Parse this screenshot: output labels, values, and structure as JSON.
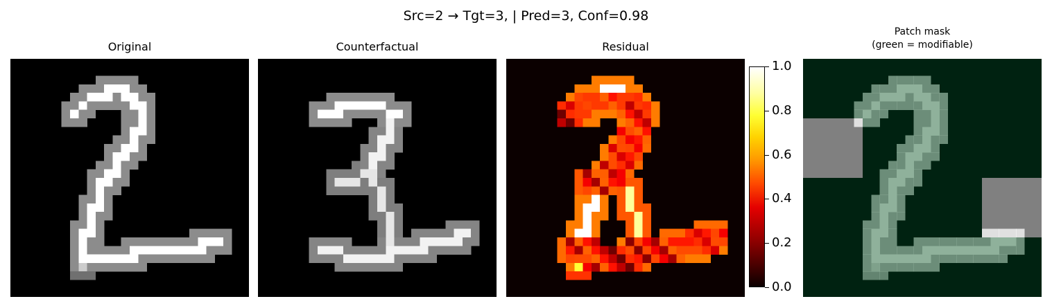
{
  "figure": {
    "suptitle": "Src=2 → Tgt=3, | Pred=3, Conf=0.98"
  },
  "panels": [
    {
      "title": "Original"
    },
    {
      "title": "Counterfactual"
    },
    {
      "title": "Residual"
    },
    {
      "title_line1": "Patch mask",
      "title_line2": "(green = modifiable)"
    }
  ],
  "chart_data": {
    "type": "heatmap",
    "grid_size": 28,
    "colormaps": {
      "original": "gray",
      "counterfactual": "gray",
      "residual": "hot",
      "patch_mask": "green overlay on gray"
    },
    "colorbar": {
      "range": [
        0,
        1
      ],
      "ticks": [
        "0.0",
        "0.2",
        "0.4",
        "0.6",
        "0.8",
        "1.0"
      ]
    },
    "original_digit": "2",
    "counterfactual_digit": "3",
    "non_modifiable_patches": [
      {
        "rows": [
          7,
          14
        ],
        "cols": [
          0,
          7
        ]
      },
      {
        "rows": [
          14,
          21
        ],
        "cols": [
          21,
          28
        ]
      }
    ],
    "colors": {
      "mask_bg": "#002211",
      "patch_gray": "#808080",
      "digit_green": "#8fb19b"
    }
  }
}
